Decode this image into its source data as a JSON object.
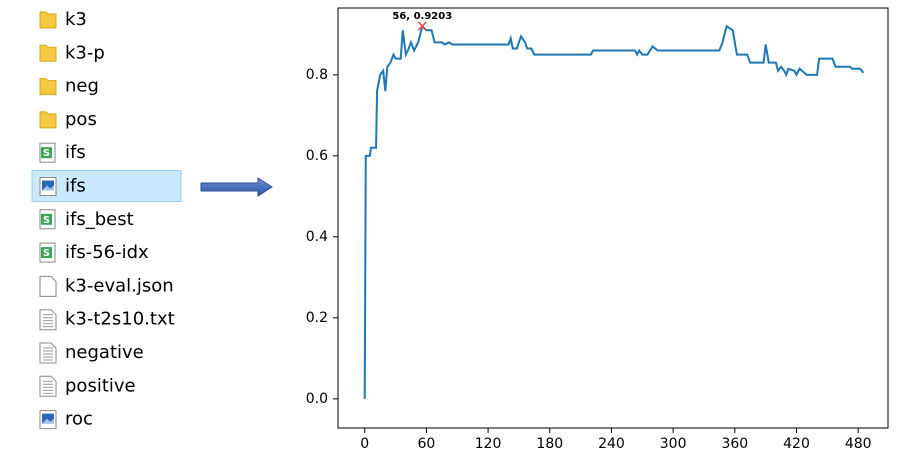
{
  "files": [
    {
      "icon": "folder",
      "name": "k3"
    },
    {
      "icon": "folder",
      "name": "k3-p"
    },
    {
      "icon": "folder",
      "name": "neg"
    },
    {
      "icon": "folder",
      "name": "pos"
    },
    {
      "icon": "sheet",
      "name": "ifs"
    },
    {
      "icon": "image",
      "name": "ifs",
      "selected": true
    },
    {
      "icon": "sheet",
      "name": "ifs_best"
    },
    {
      "icon": "sheet",
      "name": "ifs-56-idx"
    },
    {
      "icon": "file",
      "name": "k3-eval.json"
    },
    {
      "icon": "text",
      "name": "k3-t2s10.txt"
    },
    {
      "icon": "text",
      "name": "negative"
    },
    {
      "icon": "text",
      "name": "positive"
    },
    {
      "icon": "image",
      "name": "roc"
    }
  ],
  "chart_data": {
    "type": "line",
    "x": [
      0,
      1,
      5,
      6,
      11,
      12,
      15,
      18,
      20,
      22,
      25,
      28,
      30,
      35,
      37,
      40,
      42,
      45,
      48,
      52,
      56,
      60,
      65,
      68,
      75,
      78,
      82,
      85,
      90,
      140,
      142,
      144,
      148,
      152,
      156,
      158,
      162,
      165,
      220,
      222,
      263,
      265,
      267,
      270,
      275,
      280,
      285,
      290,
      345,
      348,
      352,
      358,
      362,
      372,
      375,
      388,
      390,
      393,
      400,
      402,
      405,
      408,
      410,
      412,
      418,
      420,
      423,
      430,
      440,
      442,
      455,
      458,
      472,
      474,
      482,
      485
    ],
    "series": [
      {
        "color": "#1f77b4",
        "values": [
          0,
          0.6,
          0.6,
          0.62,
          0.62,
          0.76,
          0.8,
          0.81,
          0.76,
          0.82,
          0.83,
          0.85,
          0.84,
          0.84,
          0.91,
          0.85,
          0.86,
          0.88,
          0.86,
          0.88,
          0.9203,
          0.91,
          0.91,
          0.88,
          0.88,
          0.875,
          0.88,
          0.875,
          0.875,
          0.875,
          0.89,
          0.865,
          0.865,
          0.895,
          0.88,
          0.865,
          0.865,
          0.85,
          0.85,
          0.86,
          0.86,
          0.85,
          0.86,
          0.85,
          0.85,
          0.87,
          0.86,
          0.86,
          0.86,
          0.88,
          0.92,
          0.91,
          0.85,
          0.85,
          0.83,
          0.83,
          0.875,
          0.83,
          0.83,
          0.81,
          0.82,
          0.81,
          0.8,
          0.815,
          0.81,
          0.8,
          0.815,
          0.8,
          0.8,
          0.84,
          0.84,
          0.82,
          0.82,
          0.815,
          0.815,
          0.805
        ]
      }
    ],
    "annotation": {
      "text": "56, 0.9203",
      "x": 56,
      "y": 0.9203,
      "color": "#e8474a"
    },
    "xlim": [
      -26,
      509
    ],
    "ylim": [
      -0.072,
      0.965
    ],
    "xticks": [
      0,
      60,
      120,
      180,
      240,
      300,
      360,
      420,
      480
    ],
    "yticks": [
      {
        "value": 0,
        "label": "0.0"
      },
      0.2,
      0.4,
      0.6,
      0.8
    ]
  }
}
